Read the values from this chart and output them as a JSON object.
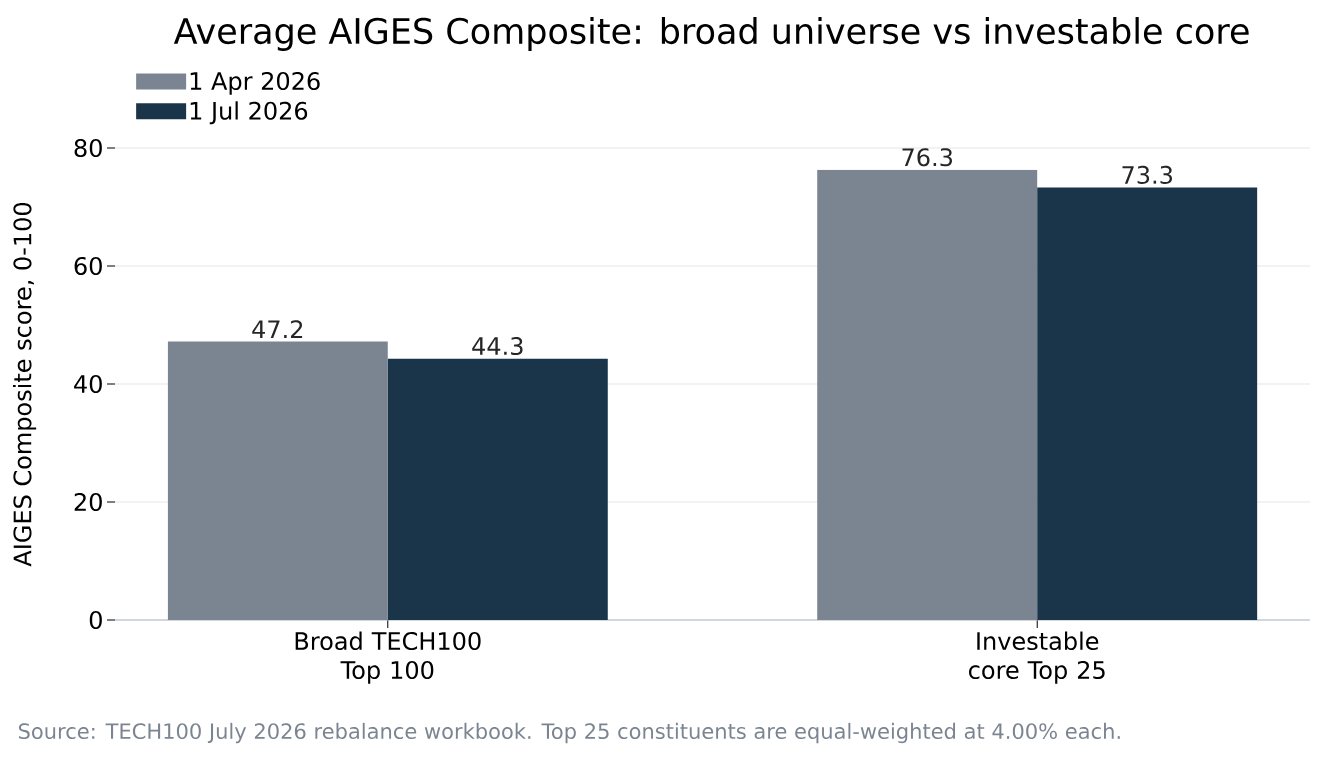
{
  "chart_data": {
    "type": "bar",
    "title": "Average AIGES Composite: broad universe vs investable core",
    "ylabel": "AIGES Composite score, 0-100",
    "categories": [
      "Broad TECH100 Top 100",
      "Investable core Top 25"
    ],
    "series": [
      {
        "name": "1 Apr 2026",
        "color": "#7b8591",
        "values": [
          47.2,
          76.3
        ]
      },
      {
        "name": "1 Jul 2026",
        "color": "#1a3549",
        "values": [
          44.3,
          73.3
        ]
      }
    ],
    "ylim": [
      0,
      80
    ],
    "yticks": [
      0,
      20,
      40,
      60,
      80
    ],
    "grid": "y",
    "legend": "top left",
    "data_labels": true,
    "annotations": [
      "Source: TECH100 July 2026 rebalance workbook. Top 25 constituents are equal-weighted at 4.00% each."
    ]
  }
}
